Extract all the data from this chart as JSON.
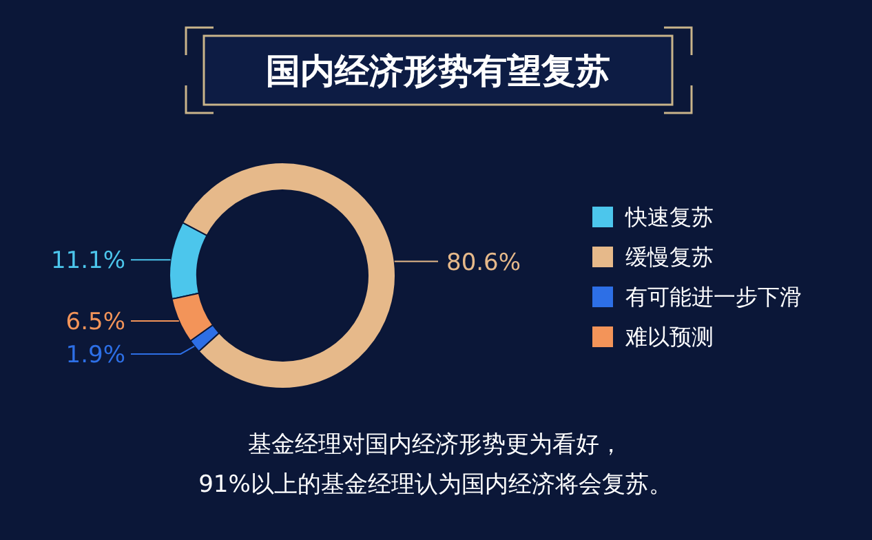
{
  "chart_data": {
    "type": "donut",
    "title": "国内经济形势有望复苏",
    "categories": [
      "快速复苏",
      "缓慢复苏",
      "有可能进一步下滑",
      "难以预测"
    ],
    "values": [
      11.1,
      80.6,
      1.9,
      6.5
    ],
    "colors": [
      "#4cc6ec",
      "#e6b98a",
      "#2d6fe6",
      "#f39459"
    ],
    "value_labels": [
      "11.1%",
      "80.6%",
      "1.9%",
      "6.5%"
    ],
    "legend": "right",
    "annotations": [
      "基金经理对国内经济形势更为看好，",
      "91%以上的基金经理认为国内经济将会复苏。"
    ]
  }
}
